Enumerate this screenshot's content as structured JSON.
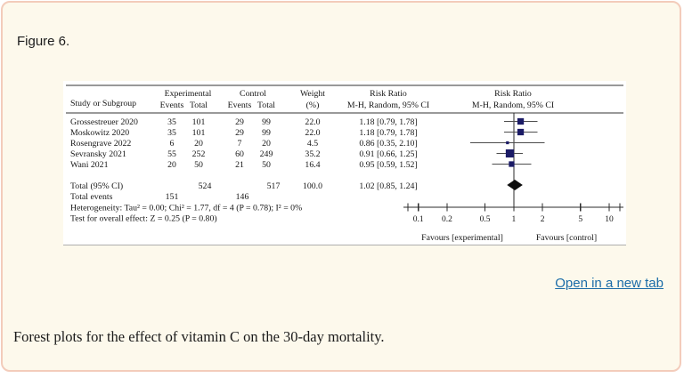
{
  "figure": {
    "label": "Figure 6.",
    "open_link_label": "Open in a new tab",
    "caption": "Forest plots for the effect of vitamin C on the 30-day mortality."
  },
  "chart_data": {
    "type": "forest_plot",
    "effect_measure": "Risk Ratio",
    "model": "M-H, Random, 95% CI",
    "header": {
      "study": "Study or Subgroup",
      "experimental": "Experimental",
      "control": "Control",
      "events": "Events",
      "total": "Total",
      "weight_line1": "Weight",
      "weight_line2": "(%)",
      "risk_ratio": "Risk Ratio",
      "method": "M-H, Random, 95% CI"
    },
    "studies": [
      {
        "name": "Grossestreuer 2020",
        "exp_events": "35",
        "exp_total": "101",
        "ctl_events": "29",
        "ctl_total": "99",
        "weight": 22.0,
        "weight_label": "22.0",
        "rr": 1.18,
        "ci_low": 0.79,
        "ci_high": 1.78,
        "rr_label": "1.18 [0.79, 1.78]"
      },
      {
        "name": "Moskowitz 2020",
        "exp_events": "35",
        "exp_total": "101",
        "ctl_events": "29",
        "ctl_total": "99",
        "weight": 22.0,
        "weight_label": "22.0",
        "rr": 1.18,
        "ci_low": 0.79,
        "ci_high": 1.78,
        "rr_label": "1.18 [0.79, 1.78]"
      },
      {
        "name": "Rosengrave 2022",
        "exp_events": "6",
        "exp_total": "20",
        "ctl_events": "7",
        "ctl_total": "20",
        "weight": 4.5,
        "weight_label": "4.5",
        "rr": 0.86,
        "ci_low": 0.35,
        "ci_high": 2.1,
        "rr_label": "0.86 [0.35, 2.10]"
      },
      {
        "name": "Sevransky 2021",
        "exp_events": "55",
        "exp_total": "252",
        "ctl_events": "60",
        "ctl_total": "249",
        "weight": 35.2,
        "weight_label": "35.2",
        "rr": 0.91,
        "ci_low": 0.66,
        "ci_high": 1.25,
        "rr_label": "0.91 [0.66, 1.25]"
      },
      {
        "name": "Wani 2021",
        "exp_events": "20",
        "exp_total": "50",
        "ctl_events": "21",
        "ctl_total": "50",
        "weight": 16.4,
        "weight_label": "16.4",
        "rr": 0.95,
        "ci_low": 0.59,
        "ci_high": 1.52,
        "rr_label": "0.95 [0.59, 1.52]"
      }
    ],
    "overall": {
      "label": "Total (95% CI)",
      "exp_total": "524",
      "ctl_total": "517",
      "weight_label": "100.0",
      "rr": 1.02,
      "ci_low": 0.85,
      "ci_high": 1.24,
      "rr_label": "1.02 [0.85, 1.24]"
    },
    "total_events": {
      "label": "Total events",
      "exp": "151",
      "ctl": "146"
    },
    "heterogeneity": "Heterogeneity: Tau² = 0.00; Chi² = 1.77, df = 4 (P = 0.78); I² = 0%",
    "overall_effect": "Test for overall effect: Z = 0.25 (P = 0.80)",
    "axis": {
      "scale": "log",
      "ticks": [
        0.1,
        0.2,
        0.5,
        1,
        2,
        5,
        10
      ],
      "tick_labels": [
        "0.1",
        "0.2",
        "0.5",
        "1",
        "2",
        "5",
        "10"
      ],
      "min": 0.1,
      "max": 10
    },
    "favours_left": "Favours [experimental]",
    "favours_right": "Favours [control]",
    "colors": {
      "square": "#1b1b66",
      "diamond": "#0d0d0d",
      "ci_line": "#4d4d4d",
      "axis_line": "#2b2b2b",
      "rule": "#333333"
    }
  }
}
